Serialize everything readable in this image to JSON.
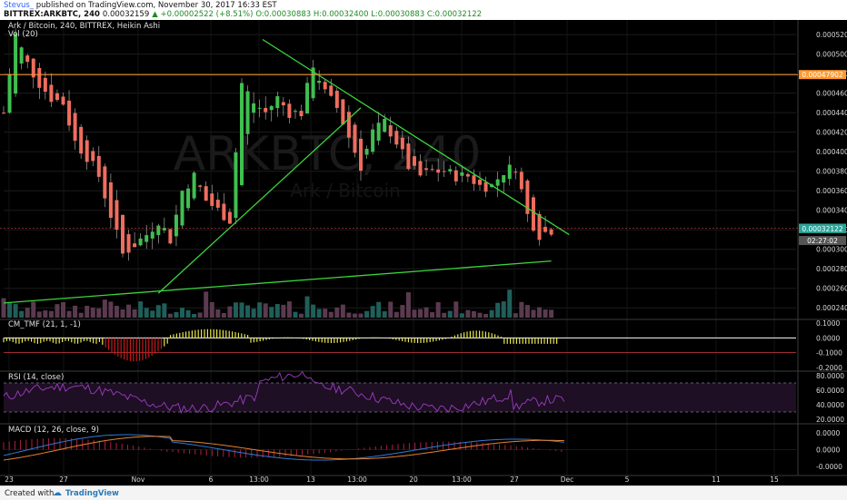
{
  "header": {
    "author": "Stevus_",
    "published": "published on TradingView.com, November 30, 2017 16:33 EST",
    "symbol": "BITTREX:ARKBTC, 240",
    "last": "0.00032159",
    "change": "▲ +0.00002522 (+8.51%)",
    "ohlc": "O:0.00030883 H:0.00032400 L:0.00030883 C:0.00032122"
  },
  "legend": {
    "title": "Ark / Bitcoin, 240, BITTREX, Heikin Ashi",
    "volume": "Vol (20)"
  },
  "watermark": {
    "main": "ARKBTC, 240",
    "sub": "Ark / Bitcoin"
  },
  "footer": {
    "created": "Created with",
    "brand": "TradingView"
  },
  "colors": {
    "up": "#26a69a",
    "up_candle": "#3fbf4f",
    "down_candle": "#ef6d5e",
    "trendline": "#3bd43b",
    "resistance": "#ff9a2e",
    "background": "#000000"
  },
  "chart_data": [
    {
      "type": "candlestick",
      "title": "Ark / Bitcoin, 240, BITTREX, Heikin Ashi",
      "ylim": [
        0.00023,
        0.000535
      ],
      "y_ticks": [
        "0.00052000",
        "0.00050000",
        "0.00048000",
        "0.00046000",
        "0.00044000",
        "0.00042000",
        "0.00040000",
        "0.00038000",
        "0.00036000",
        "0.00034000",
        "0.00032000",
        "0.00030000",
        "0.00028000",
        "0.00026000",
        "0.00024000"
      ],
      "x_ticks": [
        "23",
        "27",
        "Nov",
        "6",
        "13:00",
        "13",
        "13:00",
        "20",
        "13:00",
        "27",
        "Dec",
        "5",
        "11",
        "15"
      ],
      "price_path": [
        [
          23,
          0.00044
        ],
        [
          24,
          0.00052
        ],
        [
          25,
          0.00049
        ],
        [
          26,
          0.00047
        ],
        [
          27,
          0.000455
        ],
        [
          28,
          0.00045
        ],
        [
          29,
          0.00041
        ],
        [
          30,
          0.000395
        ],
        [
          31,
          0.000375
        ],
        [
          32,
          0.000335
        ],
        [
          33,
          0.000295
        ],
        [
          34,
          0.000305
        ],
        [
          35,
          0.000315
        ],
        [
          36,
          0.00033
        ],
        [
          37,
          0.00031
        ],
        [
          38,
          0.00036
        ],
        [
          39,
          0.000375
        ],
        [
          40,
          0.00035
        ],
        [
          41,
          0.00034
        ],
        [
          42,
          0.00033
        ],
        [
          43,
          0.00047
        ],
        [
          44,
          0.00045
        ],
        [
          45,
          0.00044
        ],
        [
          46,
          0.000455
        ],
        [
          47,
          0.00044
        ],
        [
          48,
          0.00044
        ],
        [
          49,
          0.00049
        ],
        [
          50,
          0.00046
        ],
        [
          51,
          0.000445
        ],
        [
          52,
          0.000415
        ],
        [
          53,
          0.000385
        ],
        [
          54,
          0.00042
        ],
        [
          55,
          0.00043
        ],
        [
          56,
          0.00041
        ],
        [
          57,
          0.000385
        ],
        [
          58,
          0.000375
        ],
        [
          59,
          0.00038
        ],
        [
          60,
          0.00038
        ],
        [
          61,
          0.000375
        ],
        [
          62,
          0.000375
        ],
        [
          63,
          0.000365
        ],
        [
          64,
          0.000365
        ],
        [
          65,
          0.00038
        ],
        [
          66,
          0.000385
        ],
        [
          67,
          0.000335
        ],
        [
          68,
          0.000315
        ],
        [
          69,
          0.00032
        ]
      ],
      "annotations": [
        {
          "type": "hline",
          "label": "0.00047902",
          "value": 0.00047902,
          "color": "#ff9a2e"
        },
        {
          "type": "last_price",
          "label": "0.00032159",
          "value": 0.00032159,
          "color": "#ef5350"
        },
        {
          "type": "last_close",
          "label": "0.00032122",
          "value": 0.00032122,
          "color": "#26a69a"
        },
        {
          "type": "countdown",
          "label": "02:27:02",
          "value": 0.000309
        }
      ],
      "trendlines": [
        {
          "name": "upper",
          "from": [
            43.5,
            0.000515
          ],
          "to": [
            95,
            0.000315
          ]
        },
        {
          "name": "lower",
          "from": [
            0,
            0.000245
          ],
          "to": [
            92,
            0.000288
          ]
        },
        {
          "name": "rising",
          "from": [
            26,
            0.000255
          ],
          "to": [
            60,
            0.000445
          ]
        }
      ]
    },
    {
      "type": "bar",
      "title": "CM_TMF (21, 1, -1)",
      "ylim": [
        -0.22,
        0.12
      ],
      "y_ticks": [
        "0.1000",
        "0.0000",
        "-0.1000",
        "-0.2000"
      ],
      "reference_lines": [
        0.0,
        -0.1
      ]
    },
    {
      "type": "line",
      "title": "RSI (14, close)",
      "ylim": [
        15,
        85
      ],
      "y_ticks": [
        "80.0000",
        "60.0000",
        "40.0000",
        "20.0000"
      ],
      "band": [
        30,
        70
      ]
    },
    {
      "type": "line",
      "title": "MACD (12, 26, close, 9)",
      "ylim": [
        -3e-05,
        3e-05
      ],
      "y_ticks": [
        "0.0000",
        "0.0000",
        "-0.0000"
      ],
      "series": [
        {
          "name": "MACD"
        },
        {
          "name": "Signal"
        }
      ]
    }
  ]
}
